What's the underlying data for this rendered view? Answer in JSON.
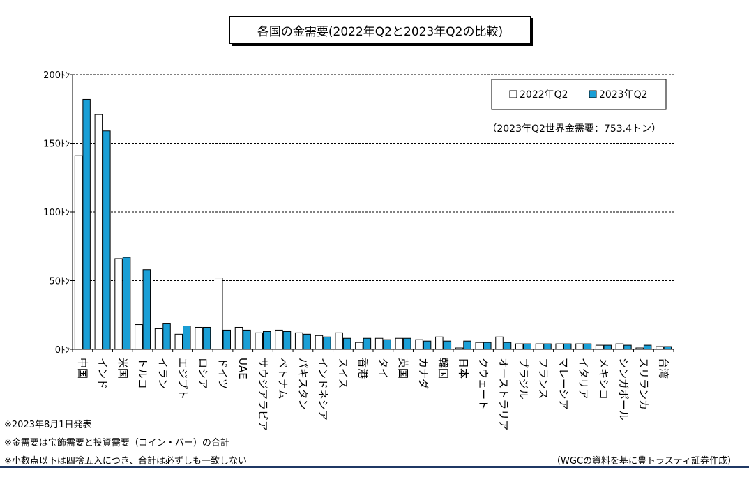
{
  "title": "各国の金需要(2022年Q2と2023年Q2の比較)",
  "colors": {
    "s2022": "#ffffff",
    "s2023": "#1a9fd6",
    "stroke": "#000000",
    "footer_rule": "#1f3864"
  },
  "chart_data": {
    "type": "bar",
    "title": "各国の金需要(2022年Q2と2023年Q2の比較)",
    "ylim": [
      0,
      200
    ],
    "yticks": [
      0,
      50,
      100,
      150,
      200
    ],
    "ytick_labels": [
      "0ﾄﾝ",
      "50ﾄﾝ",
      "100ﾄﾝ",
      "150ﾄﾝ",
      "200ﾄﾝ"
    ],
    "grid": true,
    "legend_position": "top-right",
    "annotation": "（2023年Q2世界金需要：753.4トン）",
    "categories": [
      "中国",
      "インド",
      "米国",
      "トルコ",
      "イラン",
      "エジプト",
      "ロシア",
      "ドイツ",
      "UAE",
      "サウジアラビア",
      "ベトナム",
      "パキスタン",
      "インドネシア",
      "スイス",
      "香港",
      "タイ",
      "英国",
      "カナダ",
      "韓国",
      "日本",
      "クウェート",
      "オーストラリア",
      "ブラジル",
      "フランス",
      "マレーシア",
      "イタリア",
      "メキシコ",
      "シンガポール",
      "スリランカ",
      "台湾"
    ],
    "series": [
      {
        "name": "2022年Q2",
        "values": [
          141,
          171,
          66,
          18,
          15,
          11,
          16,
          52,
          16,
          12,
          14,
          12,
          10,
          12,
          5,
          8,
          8,
          7,
          9,
          1,
          5,
          9,
          4,
          4,
          4,
          4,
          3,
          4,
          1,
          2
        ]
      },
      {
        "name": "2023年Q2",
        "values": [
          182,
          159,
          67,
          58,
          19,
          17,
          16,
          14,
          14,
          13,
          13,
          11,
          9,
          8,
          8,
          7,
          8,
          6,
          6,
          6,
          5,
          5,
          4,
          4,
          4,
          4,
          3,
          3,
          3,
          2
        ]
      }
    ]
  },
  "notes": [
    "※2023年8月1日発表",
    "※金需要は宝飾需要と投資需要（コイン・バー）の合計",
    "※小数点以下は四捨五入につき、合計は必ずしも一致しない"
  ],
  "source": "（WGCの資料を基に豊トラスティ証券作成）"
}
